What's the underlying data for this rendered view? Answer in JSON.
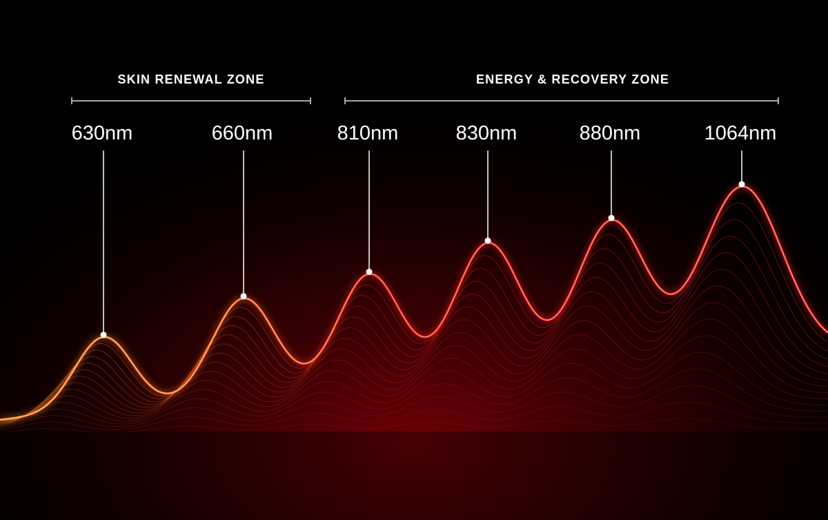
{
  "zones": [
    "SKIN RENEWAL ZONE",
    "ENERGY & RECOVERY ZONE"
  ],
  "wavelengths": [
    "630nm",
    "660nm",
    "810nm",
    "830nm",
    "880nm",
    "1064nm"
  ]
}
